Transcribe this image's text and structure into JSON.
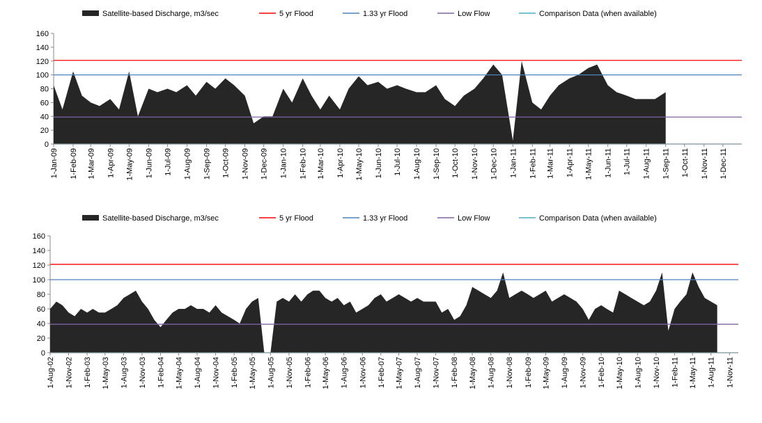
{
  "chart_data": [
    {
      "type": "area",
      "x": [
        "1-Jan-09",
        "15-Jan-09",
        "1-Feb-09",
        "15-Feb-09",
        "1-Mar-09",
        "15-Mar-09",
        "1-Apr-09",
        "15-Apr-09",
        "1-May-09",
        "15-May-09",
        "1-Jun-09",
        "15-Jun-09",
        "1-Jul-09",
        "15-Jul-09",
        "1-Aug-09",
        "15-Aug-09",
        "1-Sep-09",
        "15-Sep-09",
        "1-Oct-09",
        "15-Oct-09",
        "1-Nov-09",
        "15-Nov-09",
        "1-Dec-09",
        "15-Dec-09",
        "1-Jan-10",
        "15-Jan-10",
        "1-Feb-10",
        "15-Feb-10",
        "1-Mar-10",
        "15-Mar-10",
        "1-Apr-10",
        "15-Apr-10",
        "1-May-10",
        "15-May-10",
        "1-Jun-10",
        "15-Jun-10",
        "1-Jul-10",
        "15-Jul-10",
        "1-Aug-10",
        "15-Aug-10",
        "1-Sep-10",
        "15-Sep-10",
        "1-Oct-10",
        "15-Oct-10",
        "1-Nov-10",
        "15-Nov-10",
        "1-Dec-10",
        "15-Dec-10",
        "1-Jan-11",
        "15-Jan-11",
        "1-Feb-11",
        "15-Feb-11",
        "1-Mar-11",
        "15-Mar-11",
        "1-Apr-11",
        "15-Apr-11",
        "1-May-11",
        "15-May-11",
        "1-Jun-11",
        "15-Jun-11",
        "1-Jul-11",
        "15-Jul-11",
        "1-Aug-11",
        "15-Aug-11",
        "1-Sep-11"
      ],
      "series": [
        {
          "name": "Satellite-based Discharge, m3/sec",
          "color": "#262626",
          "values": [
            85,
            50,
            105,
            70,
            60,
            55,
            65,
            50,
            105,
            40,
            80,
            75,
            80,
            75,
            85,
            70,
            90,
            80,
            95,
            85,
            70,
            30,
            40,
            40,
            80,
            60,
            95,
            70,
            50,
            70,
            50,
            80,
            98,
            85,
            90,
            80,
            85,
            80,
            75,
            75,
            85,
            65,
            55,
            70,
            80,
            95,
            115,
            100,
            5,
            120,
            60,
            50,
            70,
            85,
            95,
            100,
            110,
            115,
            85,
            75,
            70,
            65,
            65,
            65,
            75
          ]
        },
        {
          "name": "5 yr Flood",
          "color": "#ff0000",
          "value": 121
        },
        {
          "name": "1.33 yr Flood",
          "color": "#4f81bd",
          "value": 100
        },
        {
          "name": "Low Flow",
          "color": "#8064a2",
          "value": 39
        },
        {
          "name": "Comparison Data (when available)",
          "color": "#4bacc6",
          "value": 0
        }
      ],
      "xlim": [
        "1-Jan-09",
        "31-Dec-11"
      ],
      "xticks": [
        "1-Jan-09",
        "1-Feb-09",
        "1-Mar-09",
        "1-Apr-09",
        "1-May-09",
        "1-Jun-09",
        "1-Jul-09",
        "1-Aug-09",
        "1-Sep-09",
        "1-Oct-09",
        "1-Nov-09",
        "1-Dec-09",
        "1-Jan-10",
        "1-Feb-10",
        "1-Mar-10",
        "1-Apr-10",
        "1-May-10",
        "1-Jun-10",
        "1-Jul-10",
        "1-Aug-10",
        "1-Sep-10",
        "1-Oct-10",
        "1-Nov-10",
        "1-Dec-10",
        "1-Jan-11",
        "1-Feb-11",
        "1-Mar-11",
        "1-Apr-11",
        "1-May-11",
        "1-Jun-11",
        "1-Jul-11",
        "1-Aug-11",
        "1-Sep-11",
        "1-Oct-11",
        "1-Nov-11",
        "1-Dec-11"
      ],
      "ylim": [
        0,
        160
      ],
      "yticks": [
        0,
        20,
        40,
        60,
        80,
        100,
        120,
        140,
        160
      ],
      "legend": "top"
    },
    {
      "type": "area",
      "x": [
        "1-Aug-02",
        "1-Sep-02",
        "1-Oct-02",
        "1-Nov-02",
        "1-Dec-02",
        "1-Jan-03",
        "1-Feb-03",
        "1-Mar-03",
        "1-Apr-03",
        "1-May-03",
        "1-Jun-03",
        "1-Jul-03",
        "1-Aug-03",
        "1-Sep-03",
        "1-Oct-03",
        "1-Nov-03",
        "1-Dec-03",
        "1-Jan-04",
        "1-Feb-04",
        "1-Mar-04",
        "1-Apr-04",
        "1-May-04",
        "1-Jun-04",
        "1-Jul-04",
        "1-Aug-04",
        "1-Sep-04",
        "1-Oct-04",
        "1-Nov-04",
        "1-Dec-04",
        "1-Jan-05",
        "1-Feb-05",
        "1-Mar-05",
        "1-Apr-05",
        "1-May-05",
        "1-Jun-05",
        "1-Jul-05",
        "1-Aug-05",
        "1-Sep-05",
        "1-Oct-05",
        "1-Nov-05",
        "1-Dec-05",
        "1-Jan-06",
        "1-Feb-06",
        "1-Mar-06",
        "1-Apr-06",
        "1-May-06",
        "1-Jun-06",
        "1-Jul-06",
        "1-Aug-06",
        "1-Sep-06",
        "1-Oct-06",
        "1-Nov-06",
        "1-Dec-06",
        "1-Jan-07",
        "1-Feb-07",
        "1-Mar-07",
        "1-Apr-07",
        "1-May-07",
        "1-Jun-07",
        "1-Jul-07",
        "1-Aug-07",
        "1-Sep-07",
        "1-Oct-07",
        "1-Nov-07",
        "1-Dec-07",
        "1-Jan-08",
        "1-Feb-08",
        "1-Mar-08",
        "1-Apr-08",
        "1-May-08",
        "1-Jun-08",
        "1-Jul-08",
        "1-Aug-08",
        "1-Sep-08",
        "1-Oct-08",
        "1-Nov-08",
        "1-Dec-08",
        "1-Jan-09",
        "1-Feb-09",
        "1-Mar-09",
        "1-Apr-09",
        "1-May-09",
        "1-Jun-09",
        "1-Jul-09",
        "1-Aug-09",
        "1-Sep-09",
        "1-Oct-09",
        "1-Nov-09",
        "1-Dec-09",
        "1-Jan-10",
        "1-Feb-10",
        "1-Mar-10",
        "1-Apr-10",
        "1-May-10",
        "1-Jun-10",
        "1-Jul-10",
        "1-Aug-10",
        "1-Sep-10",
        "1-Oct-10",
        "1-Nov-10",
        "1-Dec-10",
        "1-Jan-11",
        "1-Feb-11",
        "1-Mar-11",
        "1-Apr-11",
        "1-May-11",
        "1-Jun-11",
        "1-Jul-11",
        "1-Aug-11",
        "1-Sep-11"
      ],
      "series": [
        {
          "name": "Satellite-based Discharge, m3/sec",
          "color": "#262626",
          "values": [
            60,
            70,
            65,
            55,
            50,
            60,
            55,
            60,
            55,
            55,
            60,
            65,
            75,
            80,
            85,
            70,
            60,
            45,
            35,
            45,
            55,
            60,
            60,
            65,
            60,
            60,
            55,
            65,
            55,
            50,
            45,
            40,
            60,
            70,
            75,
            0,
            0,
            70,
            75,
            70,
            80,
            70,
            80,
            85,
            85,
            75,
            70,
            75,
            65,
            70,
            55,
            60,
            65,
            75,
            80,
            70,
            75,
            80,
            75,
            70,
            75,
            70,
            70,
            70,
            55,
            60,
            45,
            50,
            65,
            90,
            85,
            80,
            75,
            85,
            110,
            75,
            80,
            85,
            80,
            75,
            80,
            85,
            70,
            75,
            80,
            75,
            70,
            60,
            45,
            60,
            65,
            60,
            55,
            85,
            80,
            75,
            70,
            65,
            70,
            85,
            110,
            30,
            60,
            70,
            80,
            110,
            90,
            75,
            70,
            65
          ]
        },
        {
          "name": "5 yr Flood",
          "color": "#ff0000",
          "value": 121
        },
        {
          "name": "1.33 yr Flood",
          "color": "#4f81bd",
          "value": 100
        },
        {
          "name": "Low Flow",
          "color": "#8064a2",
          "value": 39
        },
        {
          "name": "Comparison Data (when available)",
          "color": "#4bacc6",
          "value": 0
        }
      ],
      "xlim": [
        "1-Aug-02",
        "15-Dec-11"
      ],
      "xticks": [
        "1-Aug-02",
        "1-Nov-02",
        "1-Feb-03",
        "1-May-03",
        "1-Aug-03",
        "1-Nov-03",
        "1-Feb-04",
        "1-May-04",
        "1-Aug-04",
        "1-Nov-04",
        "1-Feb-05",
        "1-May-05",
        "1-Aug-05",
        "1-Nov-05",
        "1-Feb-06",
        "1-May-06",
        "1-Aug-06",
        "1-Nov-06",
        "1-Feb-07",
        "1-May-07",
        "1-Aug-07",
        "1-Nov-07",
        "1-Feb-08",
        "1-May-08",
        "1-Aug-08",
        "1-Nov-08",
        "1-Feb-09",
        "1-May-09",
        "1-Aug-09",
        "1-Nov-09",
        "1-Feb-10",
        "1-May-10",
        "1-Aug-10",
        "1-Nov-10",
        "1-Feb-11",
        "1-May-11",
        "1-Aug-11",
        "1-Nov-11"
      ],
      "ylim": [
        0,
        160
      ],
      "yticks": [
        0,
        20,
        40,
        60,
        80,
        100,
        120,
        140,
        160
      ],
      "legend": "top"
    }
  ]
}
